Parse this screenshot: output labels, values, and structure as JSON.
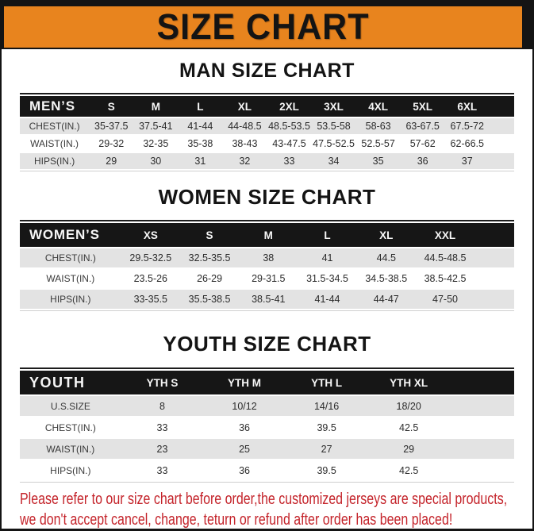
{
  "banner": {
    "title": "SIZE CHART"
  },
  "sections": [
    {
      "title": "MAN SIZE CHART",
      "table": {
        "header_label": "MEN’S",
        "columns": [
          "S",
          "M",
          "L",
          "XL",
          "2XL",
          "3XL",
          "4XL",
          "5XL",
          "6XL"
        ],
        "rows": [
          {
            "label": "CHEST(IN.)",
            "shaded": true,
            "values": [
              "35-37.5",
              "37.5-41",
              "41-44",
              "44-48.5",
              "48.5-53.5",
              "53.5-58",
              "58-63",
              "63-67.5",
              "67.5-72"
            ]
          },
          {
            "label": "WAIST(IN.)",
            "shaded": false,
            "values": [
              "29-32",
              "32-35",
              "35-38",
              "38-43",
              "43-47.5",
              "47.5-52.5",
              "52.5-57",
              "57-62",
              "62-66.5"
            ]
          },
          {
            "label": "HIPS(IN.)",
            "shaded": true,
            "values": [
              "29",
              "30",
              "31",
              "32",
              "33",
              "34",
              "35",
              "36",
              "37"
            ]
          }
        ]
      }
    },
    {
      "title": "WOMEN SIZE CHART",
      "table": {
        "header_label": "WOMEN’S",
        "columns": [
          "XS",
          "S",
          "M",
          "L",
          "XL",
          "XXL"
        ],
        "rows": [
          {
            "label": "CHEST(IN.)",
            "shaded": true,
            "values": [
              "29.5-32.5",
              "32.5-35.5",
              "38",
              "41",
              "44.5",
              "44.5-48.5"
            ]
          },
          {
            "label": "WAIST(IN.)",
            "shaded": false,
            "values": [
              "23.5-26",
              "26-29",
              "29-31.5",
              "31.5-34.5",
              "34.5-38.5",
              "38.5-42.5"
            ]
          },
          {
            "label": "HIPS(IN.)",
            "shaded": true,
            "values": [
              "33-35.5",
              "35.5-38.5",
              "38.5-41",
              "41-44",
              "44-47",
              "47-50"
            ]
          }
        ]
      }
    },
    {
      "title": "YOUTH SIZE CHART",
      "table": {
        "header_label": "YOUTH",
        "columns": [
          "YTH S",
          "YTH M",
          "YTH L",
          "YTH XL"
        ],
        "rows": [
          {
            "label": "U.S.SIZE",
            "shaded": true,
            "values": [
              "8",
              "10/12",
              "14/16",
              "18/20"
            ]
          },
          {
            "label": "CHEST(IN.)",
            "shaded": false,
            "values": [
              "33",
              "36",
              "39.5",
              "42.5"
            ]
          },
          {
            "label": "WAIST(IN.)",
            "shaded": true,
            "values": [
              "23",
              "25",
              "27",
              "29"
            ]
          },
          {
            "label": "HIPS(IN.)",
            "shaded": false,
            "values": [
              "33",
              "36",
              "39.5",
              "42.5"
            ]
          }
        ]
      }
    }
  ],
  "footer": {
    "line1": "Please refer to our size chart before order,the customized jerseys are special products,",
    "line2": "we don't accept cancel, change, teturn or refund after order has been placed!"
  },
  "colors": {
    "banner_orange": "#E8841E",
    "frame_black": "#141414",
    "table_header_bg": "#161616",
    "row_shade": "#E3E3E3",
    "footer_red": "#C4232A"
  }
}
